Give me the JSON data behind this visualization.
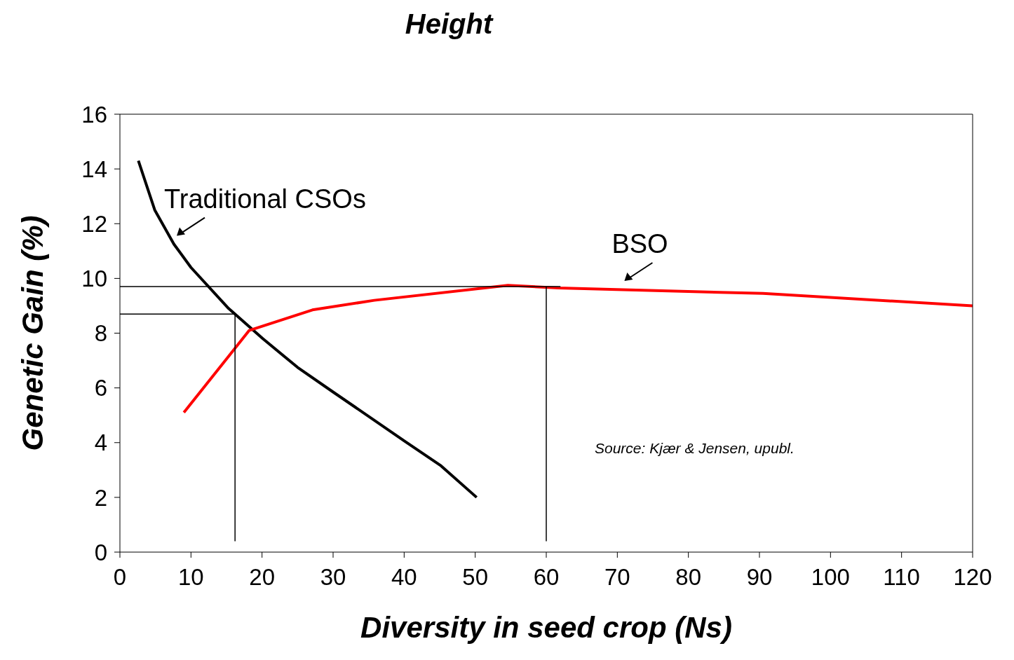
{
  "chart_data": {
    "type": "line",
    "title": "Height",
    "xlabel": "Diversity in seed crop (Ns)",
    "ylabel": "Genetic Gain (%)",
    "xlim": [
      0,
      120
    ],
    "xticks": [
      0,
      10,
      20,
      30,
      40,
      50,
      60,
      70,
      80,
      90,
      100,
      110,
      120
    ],
    "ylim": [
      0,
      16
    ],
    "yticks": [
      0,
      2,
      4,
      6,
      8,
      10,
      12,
      14,
      16
    ],
    "marker": "none",
    "line_style": "solid",
    "series": [
      {
        "color": "#000000",
        "x": [
          2.6,
          4.9,
          7.6,
          10,
          15.3,
          20.1,
          25,
          30,
          40.1,
          45.2,
          50.2
        ],
        "values": [
          14.3,
          12.5,
          11.25,
          10.4,
          8.9,
          7.8,
          6.75,
          5.85,
          4.05,
          3.15,
          2
        ]
      },
      {
        "color": "#ff0000",
        "x": [
          9,
          18.2,
          27.1,
          35.8,
          54.6,
          61.7,
          90.5,
          120
        ],
        "values": [
          5.1,
          8.1,
          8.85,
          9.2,
          9.75,
          9.65,
          9.45,
          9
        ]
      },
      {
        "color": "#000000",
        "x": [
          0,
          62
        ],
        "values": [
          9.7,
          9.7
        ]
      },
      {
        "color": "#000000",
        "x": [
          0,
          16.2,
          16.2
        ],
        "values": [
          8.7,
          8.7,
          0.4
        ]
      },
      {
        "color": "#000000",
        "x": [
          60,
          60
        ],
        "values": [
          9.7,
          0.4
        ]
      }
    ],
    "annotations": [
      {
        "text": "Traditional CSOs",
        "x": 7.6,
        "y": 11.25
      },
      {
        "text": "BSO",
        "x": 70.6,
        "y": 9.6
      },
      "Source: Kjær & Jensen, upubl."
    ]
  }
}
